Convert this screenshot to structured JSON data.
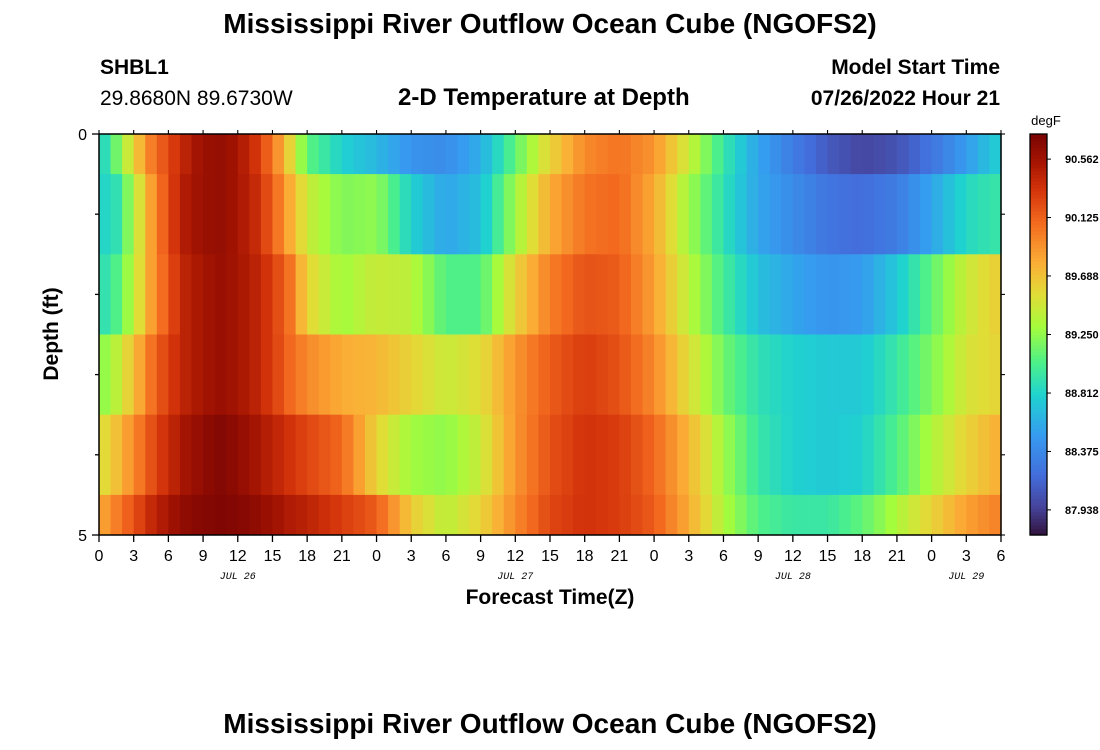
{
  "header": {
    "title": "Mississippi River Outflow Ocean Cube (NGOFS2)",
    "station": "SHBL1",
    "coords": "29.8680N  89.6730W",
    "subtitle": "2-D Temperature at Depth",
    "model_start_label": "Model Start Time",
    "model_start_value": "07/26/2022 Hour 21"
  },
  "footer": {
    "title": "Mississippi River Outflow Ocean Cube (NGOFS2)"
  },
  "chart_data": {
    "type": "heatmap",
    "xlabel": "Forecast Time(Z)",
    "ylabel": "Depth (ft)",
    "x_tick_labels": [
      "0",
      "3",
      "6",
      "9",
      "12",
      "15",
      "18",
      "21",
      "0",
      "3",
      "6",
      "9",
      "12",
      "15",
      "18",
      "21",
      "0",
      "3",
      "6",
      "9",
      "12",
      "15",
      "18",
      "21",
      "0",
      "3",
      "6"
    ],
    "x_range_hours": [
      0,
      78
    ],
    "date_labels": [
      {
        "text": "JUL 26",
        "hour": 12
      },
      {
        "text": "JUL 27",
        "hour": 36
      },
      {
        "text": "JUL 28",
        "hour": 60
      },
      {
        "text": "JUL 29",
        "hour": 75
      }
    ],
    "y_range": [
      0,
      5
    ],
    "y_tick_labels": [
      "0",
      "5"
    ],
    "colorbar": {
      "unit": "degF",
      "min": 87.75,
      "max": 90.75,
      "tick_labels": [
        "90.562",
        "90.125",
        "89.688",
        "89.250",
        "88.812",
        "88.375",
        "87.938"
      ],
      "tick_values": [
        90.562,
        90.125,
        89.688,
        89.25,
        88.812,
        88.375,
        87.938
      ]
    },
    "row_depth_bounds": [
      0,
      0.5,
      1.5,
      2.5,
      3.5,
      4.5,
      5
    ],
    "keyframe_hours": [
      0,
      1.5,
      3,
      4.5,
      6,
      7.5,
      9,
      10.5,
      12,
      13.5,
      15,
      16.5,
      18,
      21,
      24,
      27,
      30,
      33,
      36,
      39,
      42,
      45,
      48,
      51,
      54,
      57,
      60,
      63,
      66,
      69,
      72,
      75,
      78
    ],
    "rows": [
      [
        88.75,
        89.15,
        89.6,
        90.0,
        90.25,
        90.45,
        90.6,
        90.62,
        90.55,
        90.35,
        90.05,
        89.6,
        89.1,
        88.8,
        88.65,
        88.45,
        88.4,
        88.6,
        89.1,
        89.6,
        89.95,
        90.05,
        89.9,
        89.45,
        88.95,
        88.55,
        88.3,
        88.1,
        87.98,
        88.05,
        88.25,
        88.5,
        88.8
      ],
      [
        88.8,
        88.9,
        89.35,
        89.85,
        90.25,
        90.5,
        90.6,
        90.62,
        90.55,
        90.4,
        90.15,
        89.8,
        89.45,
        89.2,
        89.25,
        88.8,
        88.55,
        88.7,
        89.3,
        89.8,
        90.05,
        90.1,
        89.8,
        89.3,
        88.9,
        88.55,
        88.4,
        88.25,
        88.2,
        88.3,
        88.55,
        88.85,
        88.95
      ],
      [
        88.85,
        89.05,
        89.4,
        89.85,
        90.2,
        90.45,
        90.55,
        90.6,
        90.55,
        90.45,
        90.3,
        90.05,
        89.6,
        89.3,
        89.45,
        89.4,
        89.05,
        89.05,
        89.6,
        90.0,
        90.2,
        90.15,
        89.85,
        89.4,
        89.0,
        88.7,
        88.55,
        88.45,
        88.5,
        88.75,
        89.1,
        89.45,
        89.65
      ],
      [
        89.2,
        89.4,
        89.7,
        90.05,
        90.3,
        90.45,
        90.55,
        90.6,
        90.55,
        90.45,
        90.3,
        90.1,
        89.95,
        89.8,
        89.75,
        89.6,
        89.45,
        89.55,
        89.9,
        90.15,
        90.3,
        90.2,
        89.95,
        89.55,
        89.15,
        88.9,
        88.8,
        88.75,
        88.75,
        88.95,
        89.2,
        89.5,
        89.6
      ],
      [
        89.5,
        89.7,
        89.95,
        90.2,
        90.4,
        90.55,
        90.65,
        90.7,
        90.65,
        90.55,
        90.45,
        90.35,
        90.25,
        90.1,
        89.6,
        89.3,
        89.25,
        89.45,
        89.9,
        90.2,
        90.35,
        90.3,
        90.1,
        89.75,
        89.3,
        88.95,
        88.8,
        88.75,
        88.8,
        89.05,
        89.35,
        89.6,
        89.8
      ],
      [
        89.8,
        90.0,
        90.2,
        90.4,
        90.55,
        90.65,
        90.7,
        90.72,
        90.7,
        90.65,
        90.58,
        90.5,
        90.45,
        90.3,
        90.15,
        89.65,
        89.4,
        89.6,
        89.95,
        90.25,
        90.35,
        90.3,
        90.15,
        89.8,
        89.35,
        89.05,
        88.95,
        88.95,
        89.1,
        89.35,
        89.6,
        89.85,
        90.0
      ]
    ]
  }
}
